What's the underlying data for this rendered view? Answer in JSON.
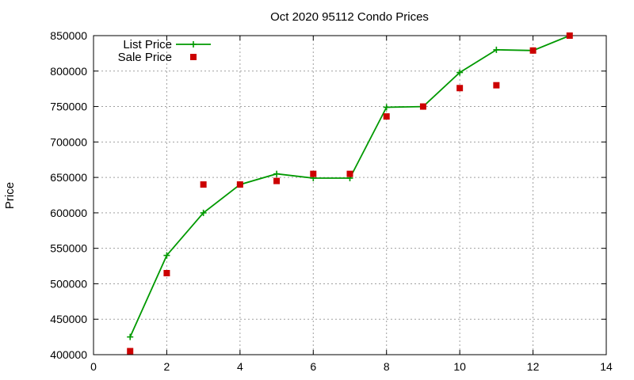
{
  "chart_data": {
    "type": "line",
    "title": "Oct 2020 95112 Condo Prices",
    "xlabel": "",
    "ylabel": "Price",
    "xlim": [
      0,
      14
    ],
    "ylim": [
      400000,
      850000
    ],
    "x_ticks": [
      0,
      2,
      4,
      6,
      8,
      10,
      12,
      14
    ],
    "y_ticks": [
      400000,
      450000,
      500000,
      550000,
      600000,
      650000,
      700000,
      750000,
      800000,
      850000
    ],
    "grid": true,
    "legend_position": "top-left",
    "series": [
      {
        "name": "List Price",
        "style": "line+plus",
        "color": "#009900",
        "x": [
          1,
          2,
          3,
          4,
          5,
          6,
          7,
          8,
          9,
          10,
          11,
          12,
          13
        ],
        "y": [
          425000,
          540000,
          600000,
          640000,
          655000,
          649000,
          649000,
          749000,
          750000,
          798000,
          830000,
          829000,
          850000
        ]
      },
      {
        "name": "Sale Price",
        "style": "square",
        "color": "#cc0000",
        "x": [
          1,
          2,
          3,
          4,
          5,
          6,
          7,
          8,
          9,
          10,
          11,
          12,
          13
        ],
        "y": [
          405000,
          515000,
          640000,
          640000,
          645000,
          655000,
          655000,
          736000,
          750000,
          776000,
          780000,
          829000,
          850000
        ]
      }
    ]
  }
}
